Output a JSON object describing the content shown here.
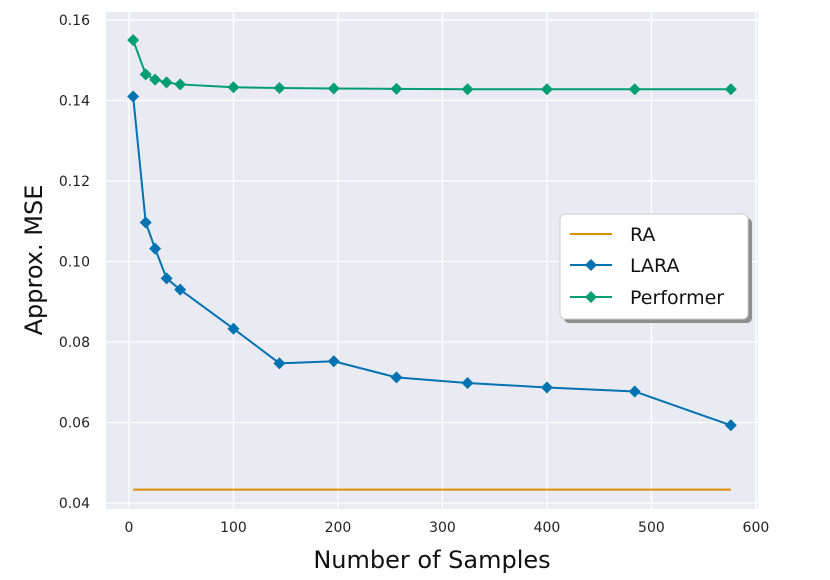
{
  "chart_data": {
    "type": "line",
    "title": "",
    "xlabel": "Number of Samples",
    "ylabel": "Approx. MSE",
    "xlim": [
      -22,
      602
    ],
    "ylim": [
      0.0385,
      0.162
    ],
    "xticks": [
      0,
      100,
      200,
      300,
      400,
      500,
      600
    ],
    "xtick_labels": [
      "0",
      "100",
      "200",
      "300",
      "400",
      "500",
      "600"
    ],
    "yticks": [
      0.04,
      0.06,
      0.08,
      0.1,
      0.12,
      0.14,
      0.16
    ],
    "ytick_labels": [
      "0.04",
      "0.06",
      "0.08",
      "0.10",
      "0.12",
      "0.14",
      "0.16"
    ],
    "grid": true,
    "legend_position": "center-right",
    "series": [
      {
        "name": "RA",
        "color": "#de8f05",
        "marker": "none",
        "x": [
          4,
          576
        ],
        "y": [
          0.0433,
          0.0433
        ]
      },
      {
        "name": "LARA",
        "color": "#0173b2",
        "marker": "diamond",
        "x": [
          4,
          16,
          25,
          36,
          49,
          100,
          144,
          196,
          256,
          324,
          400,
          484,
          576
        ],
        "y": [
          0.141,
          0.1097,
          0.1032,
          0.0958,
          0.093,
          0.0833,
          0.0747,
          0.0752,
          0.0712,
          0.0698,
          0.0687,
          0.0677,
          0.0593
        ]
      },
      {
        "name": "Performer",
        "color": "#029e73",
        "marker": "diamond",
        "x": [
          4,
          16,
          25,
          36,
          49,
          100,
          144,
          196,
          256,
          324,
          400,
          484,
          576
        ],
        "y": [
          0.155,
          0.1465,
          0.1452,
          0.1445,
          0.144,
          0.1433,
          0.1431,
          0.143,
          0.1429,
          0.1428,
          0.1428,
          0.1428,
          0.1428
        ]
      }
    ]
  }
}
